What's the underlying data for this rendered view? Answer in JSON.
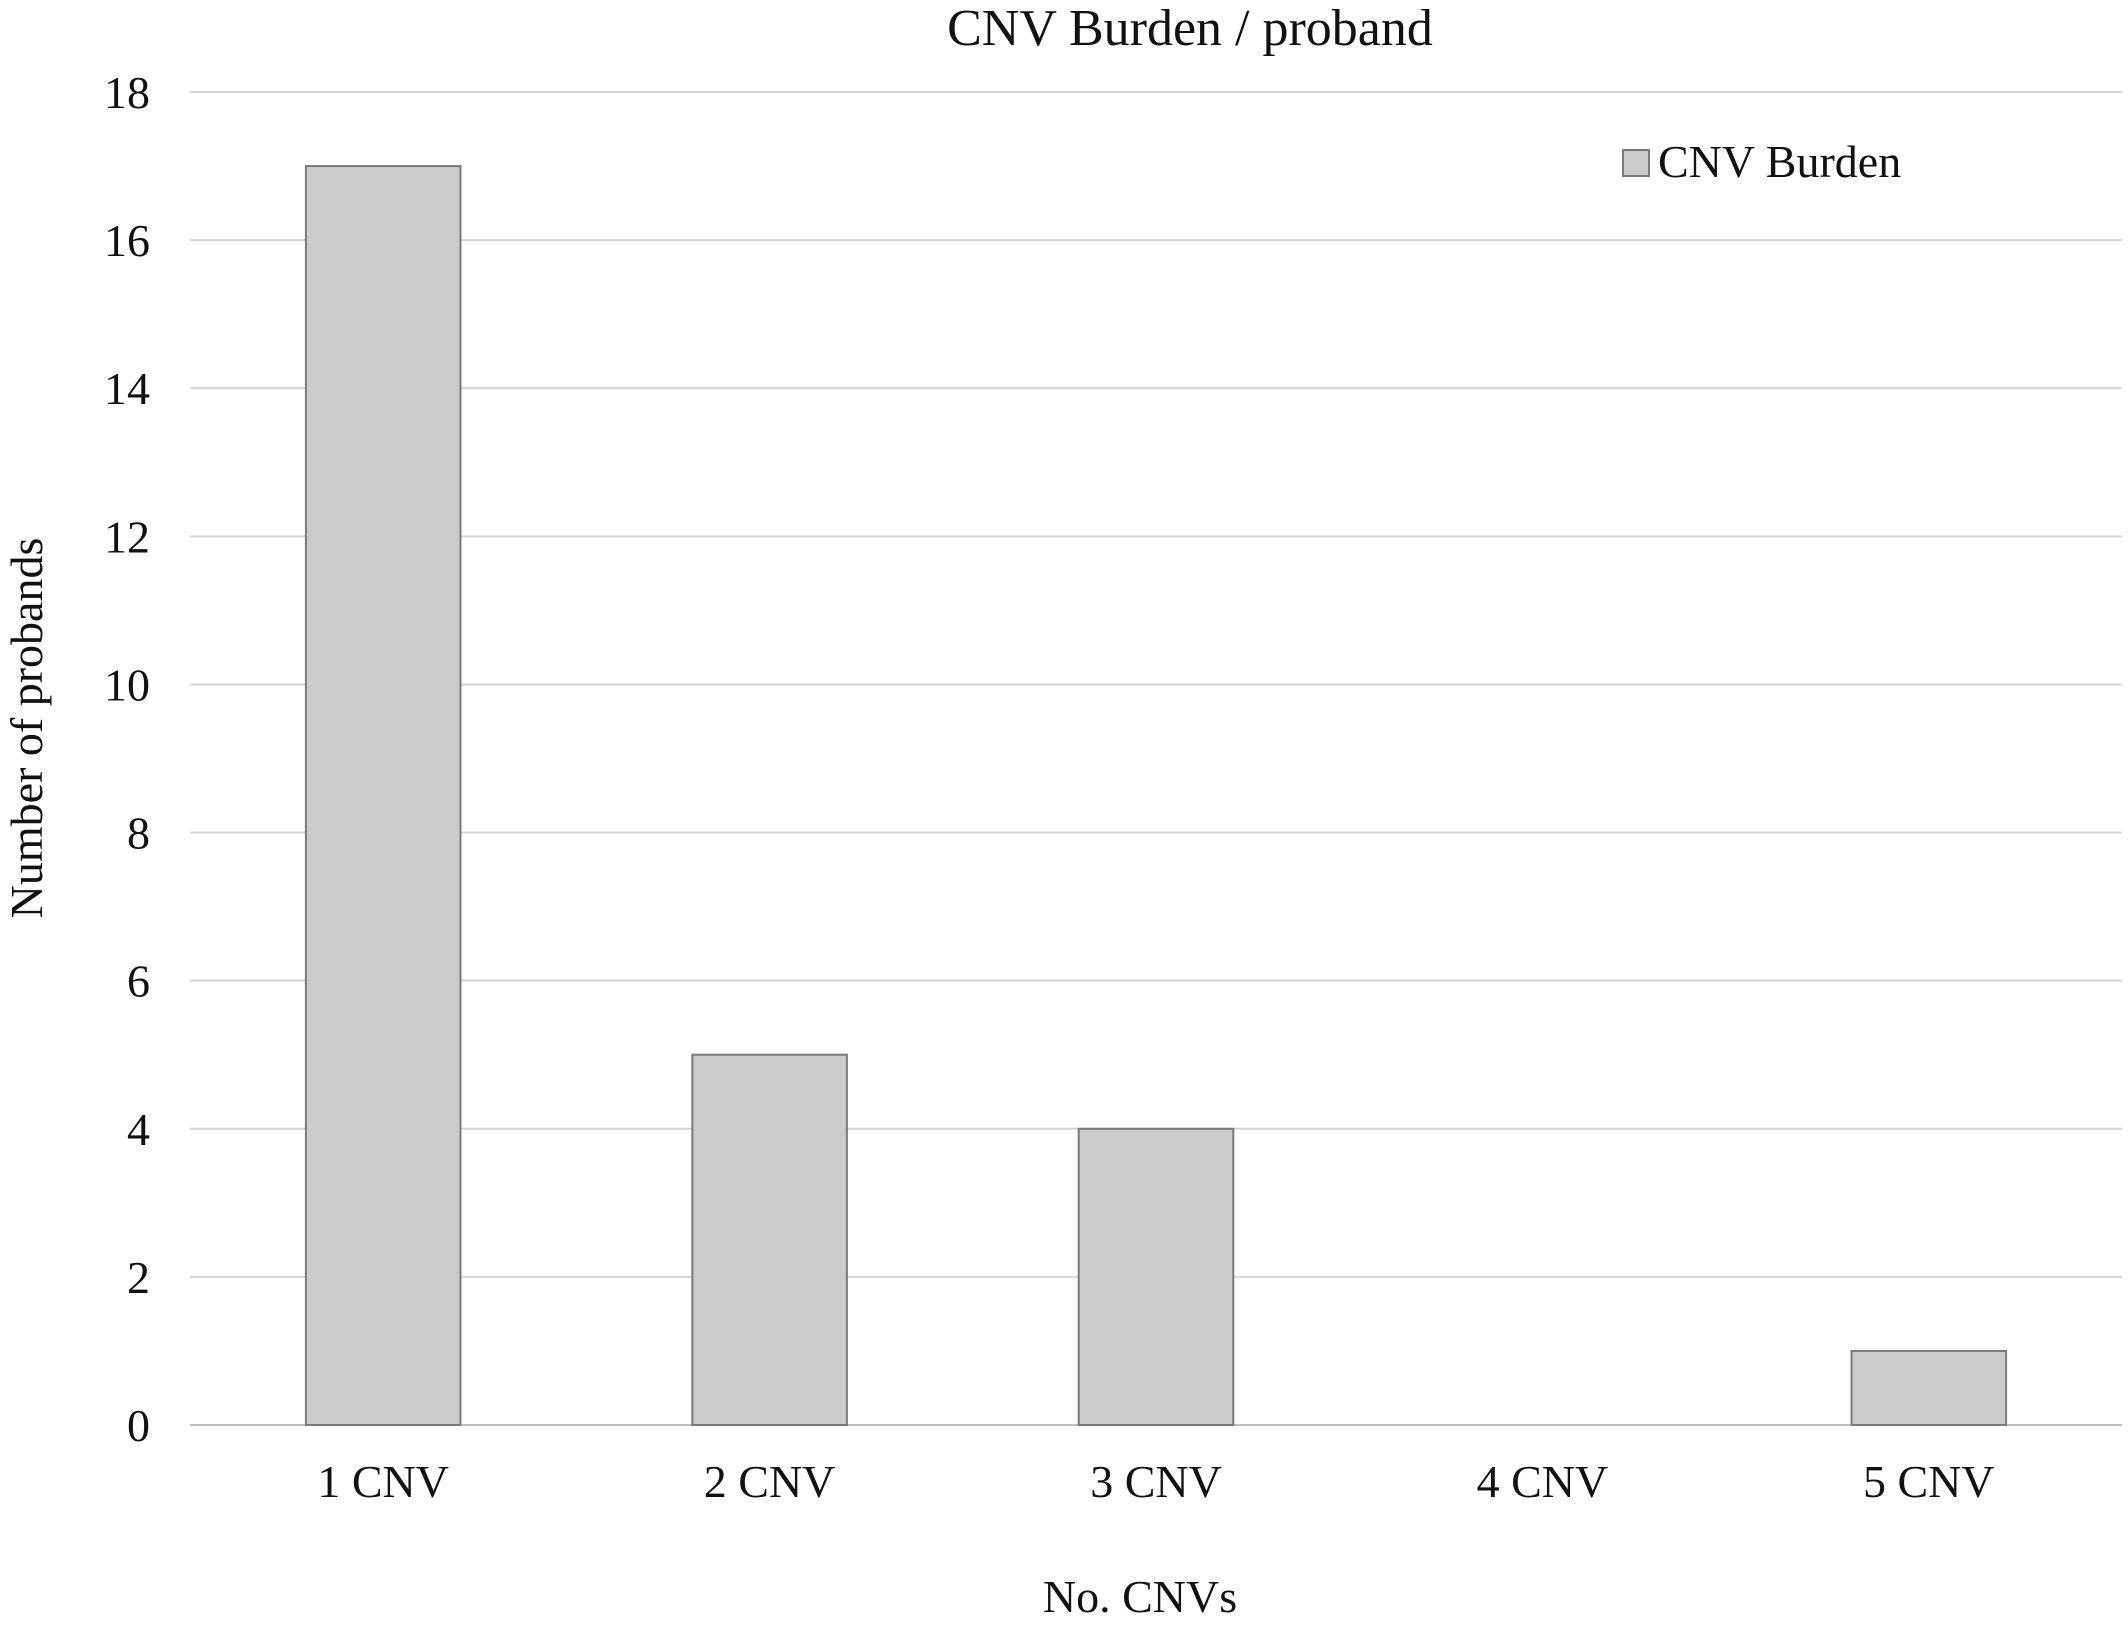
{
  "chart_data": {
    "type": "bar",
    "title": "CNV Burden / proband",
    "xlabel": "No. CNVs",
    "ylabel": "Number of probands",
    "categories": [
      "1 CNV",
      "2 CNV",
      "3 CNV",
      "4 CNV",
      "5 CNV"
    ],
    "series": [
      {
        "name": "CNV Burden",
        "values": [
          17,
          5,
          4,
          0,
          1
        ],
        "color": "#cbcbcb",
        "stroke": "#7a7a7a"
      }
    ],
    "ylim": [
      0,
      18
    ],
    "yticks": [
      0,
      2,
      4,
      6,
      8,
      10,
      12,
      14,
      16,
      18
    ],
    "grid": true,
    "legend": "top-right"
  }
}
